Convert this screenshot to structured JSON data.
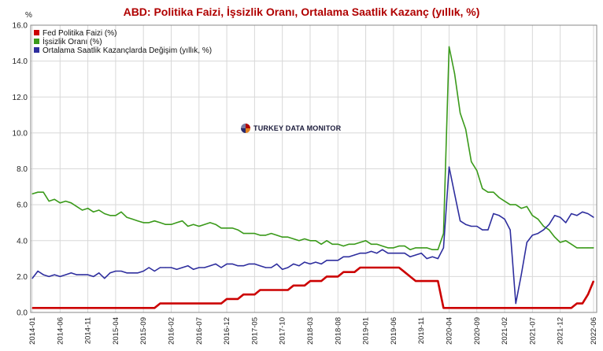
{
  "chart_data": {
    "type": "line",
    "title": "ABD: Politika Faizi, İşsizlik Oranı, Ortalama Saatlik Kazanç (yıllık, %)",
    "ylabel": "%",
    "ylim": [
      0,
      16
    ],
    "yticks": [
      "0.0",
      "2.0",
      "4.0",
      "6.0",
      "8.0",
      "10.0",
      "12.0",
      "14.0",
      "16.0"
    ],
    "x": [
      "2014-01",
      "2014-02",
      "2014-03",
      "2014-04",
      "2014-05",
      "2014-06",
      "2014-07",
      "2014-08",
      "2014-09",
      "2014-10",
      "2014-11",
      "2014-12",
      "2015-01",
      "2015-02",
      "2015-03",
      "2015-04",
      "2015-05",
      "2015-06",
      "2015-07",
      "2015-08",
      "2015-09",
      "2015-10",
      "2015-11",
      "2015-12",
      "2016-01",
      "2016-02",
      "2016-03",
      "2016-04",
      "2016-05",
      "2016-06",
      "2016-07",
      "2016-08",
      "2016-09",
      "2016-10",
      "2016-11",
      "2016-12",
      "2017-01",
      "2017-02",
      "2017-03",
      "2017-04",
      "2017-05",
      "2017-06",
      "2017-07",
      "2017-08",
      "2017-09",
      "2017-10",
      "2017-11",
      "2017-12",
      "2018-01",
      "2018-02",
      "2018-03",
      "2018-04",
      "2018-05",
      "2018-06",
      "2018-07",
      "2018-08",
      "2018-09",
      "2018-10",
      "2018-11",
      "2018-12",
      "2019-01",
      "2019-02",
      "2019-03",
      "2019-04",
      "2019-05",
      "2019-06",
      "2019-07",
      "2019-08",
      "2019-09",
      "2019-10",
      "2019-11",
      "2019-12",
      "2020-01",
      "2020-02",
      "2020-03",
      "2020-04",
      "2020-05",
      "2020-06",
      "2020-07",
      "2020-08",
      "2020-09",
      "2020-10",
      "2020-11",
      "2020-12",
      "2021-01",
      "2021-02",
      "2021-03",
      "2021-04",
      "2021-05",
      "2021-06",
      "2021-07",
      "2021-08",
      "2021-09",
      "2021-10",
      "2021-11",
      "2021-12",
      "2022-01",
      "2022-02",
      "2022-03",
      "2022-04",
      "2022-05",
      "2022-06"
    ],
    "xticks": [
      "2014-01",
      "2014-06",
      "2014-11",
      "2015-04",
      "2015-09",
      "2016-02",
      "2016-07",
      "2016-12",
      "2017-05",
      "2017-10",
      "2018-03",
      "2018-08",
      "2019-01",
      "2019-06",
      "2019-11",
      "2020-04",
      "2020-09",
      "2021-02",
      "2021-07",
      "2021-12",
      "2022-06"
    ],
    "series": [
      {
        "name": "Fed Politika Faizi (%)",
        "color": "#cc0000",
        "values": [
          0.25,
          0.25,
          0.25,
          0.25,
          0.25,
          0.25,
          0.25,
          0.25,
          0.25,
          0.25,
          0.25,
          0.25,
          0.25,
          0.25,
          0.25,
          0.25,
          0.25,
          0.25,
          0.25,
          0.25,
          0.25,
          0.25,
          0.25,
          0.5,
          0.5,
          0.5,
          0.5,
          0.5,
          0.5,
          0.5,
          0.5,
          0.5,
          0.5,
          0.5,
          0.5,
          0.75,
          0.75,
          0.75,
          1.0,
          1.0,
          1.0,
          1.25,
          1.25,
          1.25,
          1.25,
          1.25,
          1.25,
          1.5,
          1.5,
          1.5,
          1.75,
          1.75,
          1.75,
          2.0,
          2.0,
          2.0,
          2.25,
          2.25,
          2.25,
          2.5,
          2.5,
          2.5,
          2.5,
          2.5,
          2.5,
          2.5,
          2.5,
          2.25,
          2.0,
          1.75,
          1.75,
          1.75,
          1.75,
          1.75,
          0.25,
          0.25,
          0.25,
          0.25,
          0.25,
          0.25,
          0.25,
          0.25,
          0.25,
          0.25,
          0.25,
          0.25,
          0.25,
          0.25,
          0.25,
          0.25,
          0.25,
          0.25,
          0.25,
          0.25,
          0.25,
          0.25,
          0.25,
          0.25,
          0.5,
          0.5,
          1.0,
          1.75
        ]
      },
      {
        "name": "İşsizlik Oranı (%)",
        "color": "#3a9a1a",
        "values": [
          6.6,
          6.7,
          6.7,
          6.2,
          6.3,
          6.1,
          6.2,
          6.1,
          5.9,
          5.7,
          5.8,
          5.6,
          5.7,
          5.5,
          5.4,
          5.4,
          5.6,
          5.3,
          5.2,
          5.1,
          5.0,
          5.0,
          5.1,
          5.0,
          4.9,
          4.9,
          5.0,
          5.1,
          4.8,
          4.9,
          4.8,
          4.9,
          5.0,
          4.9,
          4.7,
          4.7,
          4.7,
          4.6,
          4.4,
          4.4,
          4.4,
          4.3,
          4.3,
          4.4,
          4.3,
          4.2,
          4.2,
          4.1,
          4.0,
          4.1,
          4.0,
          4.0,
          3.8,
          4.0,
          3.8,
          3.8,
          3.7,
          3.8,
          3.8,
          3.9,
          4.0,
          3.8,
          3.8,
          3.7,
          3.6,
          3.6,
          3.7,
          3.7,
          3.5,
          3.6,
          3.6,
          3.6,
          3.5,
          3.5,
          4.4,
          14.8,
          13.3,
          11.1,
          10.2,
          8.4,
          7.9,
          6.9,
          6.7,
          6.7,
          6.4,
          6.2,
          6.0,
          6.0,
          5.8,
          5.9,
          5.4,
          5.2,
          4.8,
          4.6,
          4.2,
          3.9,
          4.0,
          3.8,
          3.6,
          3.6,
          3.6,
          3.6
        ]
      },
      {
        "name": "Ortalama Saatlik Kazançlarda Değişim (yıllık, %)",
        "color": "#2e2e9e",
        "values": [
          1.9,
          2.3,
          2.1,
          2.0,
          2.1,
          2.0,
          2.1,
          2.2,
          2.1,
          2.1,
          2.1,
          2.0,
          2.2,
          1.9,
          2.2,
          2.3,
          2.3,
          2.2,
          2.2,
          2.2,
          2.3,
          2.5,
          2.3,
          2.5,
          2.5,
          2.5,
          2.4,
          2.5,
          2.6,
          2.4,
          2.5,
          2.5,
          2.6,
          2.7,
          2.5,
          2.7,
          2.7,
          2.6,
          2.6,
          2.7,
          2.7,
          2.6,
          2.5,
          2.5,
          2.7,
          2.4,
          2.5,
          2.7,
          2.6,
          2.8,
          2.7,
          2.8,
          2.7,
          2.9,
          2.9,
          2.9,
          3.1,
          3.1,
          3.2,
          3.3,
          3.3,
          3.4,
          3.3,
          3.5,
          3.3,
          3.3,
          3.3,
          3.3,
          3.1,
          3.2,
          3.3,
          3.0,
          3.1,
          3.0,
          3.6,
          8.1,
          6.6,
          5.1,
          4.9,
          4.8,
          4.8,
          4.6,
          4.6,
          5.5,
          5.4,
          5.2,
          4.6,
          0.5,
          2.1,
          3.9,
          4.3,
          4.4,
          4.6,
          4.9,
          5.4,
          5.3,
          5.0,
          5.5,
          5.4,
          5.6,
          5.5,
          5.3
        ]
      }
    ]
  },
  "watermark": {
    "text": "TURKEY DATA MONITOR",
    "icon": "globe-logo-icon"
  }
}
